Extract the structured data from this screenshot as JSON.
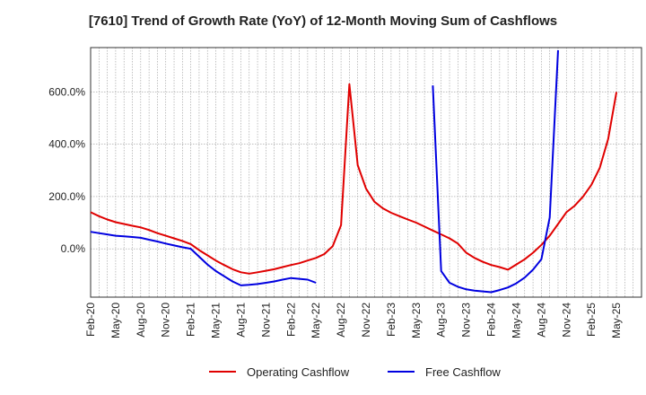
{
  "chart_data": {
    "type": "line",
    "title": "[7610]  Trend of Growth Rate (YoY) of 12-Month Moving Sum of Cashflows",
    "xlabel": "",
    "ylabel": "",
    "x_ticks": [
      "Feb-20",
      "May-20",
      "Aug-20",
      "Nov-20",
      "Feb-21",
      "May-21",
      "Aug-21",
      "Nov-21",
      "Feb-22",
      "May-22",
      "Aug-22",
      "Nov-22",
      "Feb-23",
      "May-23",
      "Aug-23",
      "Nov-23",
      "Feb-24",
      "May-24",
      "Aug-24",
      "Nov-24",
      "Feb-25",
      "May-25"
    ],
    "y_ticks": [
      0,
      200,
      400,
      600
    ],
    "y_tick_labels": [
      "0.0%",
      "200.0%",
      "400.0%",
      "600.0%"
    ],
    "ylim": [
      -185,
      770
    ],
    "x_range": [
      0,
      63
    ],
    "grid": true,
    "legend_position": "bottom",
    "series": [
      {
        "name": "Operating Cashflow",
        "color": "#e00000",
        "points": [
          [
            0,
            140
          ],
          [
            1,
            125
          ],
          [
            2,
            112
          ],
          [
            3,
            102
          ],
          [
            4,
            95
          ],
          [
            5,
            88
          ],
          [
            6,
            82
          ],
          [
            7,
            72
          ],
          [
            8,
            60
          ],
          [
            9,
            50
          ],
          [
            10,
            40
          ],
          [
            11,
            30
          ],
          [
            12,
            18
          ],
          [
            13,
            -5
          ],
          [
            14,
            -25
          ],
          [
            15,
            -45
          ],
          [
            16,
            -62
          ],
          [
            17,
            -78
          ],
          [
            18,
            -90
          ],
          [
            19,
            -95
          ],
          [
            20,
            -90
          ],
          [
            21,
            -84
          ],
          [
            22,
            -78
          ],
          [
            23,
            -70
          ],
          [
            24,
            -62
          ],
          [
            25,
            -55
          ],
          [
            26,
            -45
          ],
          [
            27,
            -35
          ],
          [
            28,
            -20
          ],
          [
            29,
            10
          ],
          [
            30,
            90
          ],
          [
            31,
            630
          ],
          [
            32,
            320
          ],
          [
            33,
            230
          ],
          [
            34,
            180
          ],
          [
            35,
            155
          ],
          [
            36,
            138
          ],
          [
            37,
            125
          ],
          [
            38,
            112
          ],
          [
            39,
            100
          ],
          [
            40,
            85
          ],
          [
            41,
            70
          ],
          [
            42,
            55
          ],
          [
            43,
            40
          ],
          [
            44,
            20
          ],
          [
            45,
            -15
          ],
          [
            46,
            -35
          ],
          [
            47,
            -50
          ],
          [
            48,
            -62
          ],
          [
            49,
            -70
          ],
          [
            50,
            -80
          ],
          [
            51,
            -60
          ],
          [
            52,
            -40
          ],
          [
            53,
            -15
          ],
          [
            54,
            15
          ],
          [
            55,
            50
          ],
          [
            56,
            95
          ],
          [
            57,
            140
          ],
          [
            58,
            165
          ],
          [
            59,
            200
          ],
          [
            60,
            245
          ],
          [
            61,
            310
          ],
          [
            62,
            420
          ],
          [
            63,
            600
          ]
        ]
      },
      {
        "name": "Free Cashflow",
        "color": "#0000e0",
        "points": [
          [
            0,
            65
          ],
          [
            1,
            60
          ],
          [
            2,
            55
          ],
          [
            3,
            50
          ],
          [
            4,
            48
          ],
          [
            5,
            45
          ],
          [
            6,
            42
          ],
          [
            7,
            35
          ],
          [
            8,
            28
          ],
          [
            9,
            20
          ],
          [
            10,
            13
          ],
          [
            11,
            6
          ],
          [
            12,
            0
          ],
          [
            13,
            -30
          ],
          [
            14,
            -60
          ],
          [
            15,
            -85
          ],
          [
            16,
            -105
          ],
          [
            17,
            -125
          ],
          [
            18,
            -140
          ],
          [
            19,
            -138
          ],
          [
            20,
            -135
          ],
          [
            21,
            -130
          ],
          [
            22,
            -125
          ],
          [
            23,
            -118
          ],
          [
            24,
            -112
          ],
          [
            25,
            -115
          ],
          [
            26,
            -118
          ],
          [
            27,
            -130
          ],
          [
            null,
            null
          ],
          [
            41,
            625
          ],
          [
            42,
            -85
          ],
          [
            43,
            -130
          ],
          [
            44,
            -145
          ],
          [
            45,
            -155
          ],
          [
            46,
            -160
          ],
          [
            47,
            -163
          ],
          [
            48,
            -166
          ],
          [
            49,
            -158
          ],
          [
            50,
            -148
          ],
          [
            51,
            -132
          ],
          [
            52,
            -110
          ],
          [
            53,
            -80
          ],
          [
            54,
            -40
          ],
          [
            55,
            120
          ],
          [
            56,
            760
          ]
        ]
      }
    ]
  }
}
